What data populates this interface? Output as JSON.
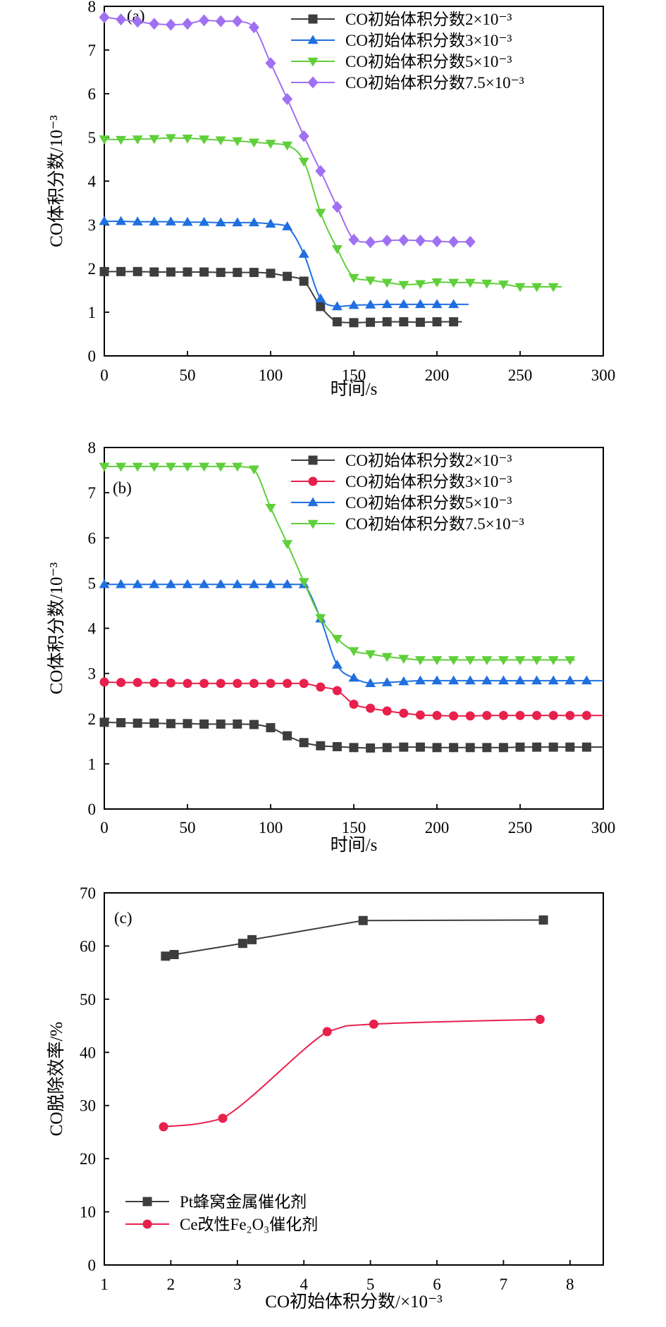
{
  "chart_data": [
    {
      "type": "line",
      "panel_label": "(a)",
      "xlabel": "时间/s",
      "ylabel": "CO体积分数/10⁻³",
      "xlim": [
        0,
        300
      ],
      "ylim": [
        0,
        8
      ],
      "xticks": [
        "0",
        "50",
        "100",
        "150",
        "200",
        "250",
        "300"
      ],
      "yticks": [
        "0",
        "1",
        "2",
        "3",
        "4",
        "5",
        "6",
        "7",
        "8"
      ],
      "legend_position": "top-right",
      "series": [
        {
          "name": "CO初始体积分数2×10⁻³",
          "color": "#3d3d3d",
          "marker": "square",
          "x": [
            0,
            10,
            20,
            30,
            40,
            50,
            60,
            70,
            80,
            90,
            100,
            110,
            120,
            130,
            140,
            150,
            160,
            170,
            180,
            190,
            200,
            210
          ],
          "y": [
            1.93,
            1.93,
            1.93,
            1.92,
            1.92,
            1.92,
            1.92,
            1.91,
            1.91,
            1.91,
            1.89,
            1.82,
            1.71,
            1.13,
            0.78,
            0.76,
            0.77,
            0.78,
            0.78,
            0.77,
            0.78,
            0.78
          ],
          "x_end": 215
        },
        {
          "name": "CO初始体积分数3×10⁻³",
          "color": "#1f6fe0",
          "marker": "triangle-up",
          "x": [
            0,
            10,
            20,
            30,
            40,
            50,
            60,
            70,
            80,
            90,
            100,
            110,
            120,
            130,
            140,
            150,
            160,
            170,
            180,
            190,
            200,
            210
          ],
          "y": [
            3.08,
            3.08,
            3.07,
            3.07,
            3.07,
            3.06,
            3.06,
            3.05,
            3.05,
            3.05,
            3.02,
            2.96,
            2.33,
            1.31,
            1.13,
            1.16,
            1.17,
            1.18,
            1.18,
            1.18,
            1.18,
            1.18
          ],
          "x_end": 219
        },
        {
          "name": "CO初始体积分数5×10⁻³",
          "color": "#5fcf3a",
          "marker": "triangle-down",
          "x": [
            0,
            10,
            20,
            30,
            40,
            50,
            60,
            70,
            80,
            90,
            100,
            110,
            120,
            130,
            140,
            150,
            160,
            170,
            180,
            190,
            200,
            210,
            220,
            230,
            240,
            250,
            260,
            270
          ],
          "y": [
            4.96,
            4.95,
            4.96,
            4.97,
            4.99,
            4.98,
            4.96,
            4.94,
            4.92,
            4.89,
            4.86,
            4.82,
            4.45,
            3.28,
            2.45,
            1.79,
            1.73,
            1.68,
            1.63,
            1.65,
            1.69,
            1.68,
            1.68,
            1.66,
            1.64,
            1.58,
            1.58,
            1.58
          ],
          "x_end": 275
        },
        {
          "name": "CO初始体积分数7.5×10⁻³",
          "color": "#a070f2",
          "marker": "diamond",
          "x": [
            0,
            10,
            20,
            30,
            40,
            50,
            60,
            70,
            80,
            90,
            100,
            110,
            120,
            130,
            140,
            150,
            160,
            170,
            180,
            190,
            200,
            210,
            220
          ],
          "y": [
            7.75,
            7.7,
            7.65,
            7.6,
            7.58,
            7.6,
            7.68,
            7.66,
            7.66,
            7.52,
            6.7,
            5.88,
            5.03,
            4.23,
            3.41,
            2.66,
            2.6,
            2.64,
            2.65,
            2.64,
            2.62,
            2.61,
            2.61
          ],
          "x_end": 222
        }
      ]
    },
    {
      "type": "line",
      "panel_label": "(b)",
      "xlabel": "时间/s",
      "ylabel": "CO体积分数/10⁻³",
      "xlim": [
        0,
        300
      ],
      "ylim": [
        0,
        8
      ],
      "xticks": [
        "0",
        "50",
        "100",
        "150",
        "200",
        "250",
        "300"
      ],
      "yticks": [
        "0",
        "1",
        "2",
        "3",
        "4",
        "5",
        "6",
        "7",
        "8"
      ],
      "legend_position": "top-right",
      "series": [
        {
          "name": "CO初始体积分数2×10⁻³",
          "color": "#3d3d3d",
          "marker": "square",
          "x": [
            0,
            10,
            20,
            30,
            40,
            50,
            60,
            70,
            80,
            90,
            100,
            110,
            120,
            130,
            140,
            150,
            160,
            170,
            180,
            190,
            200,
            210,
            220,
            230,
            240,
            250,
            260,
            270,
            280,
            290
          ],
          "y": [
            1.92,
            1.91,
            1.9,
            1.9,
            1.89,
            1.89,
            1.88,
            1.88,
            1.88,
            1.87,
            1.8,
            1.62,
            1.47,
            1.4,
            1.38,
            1.36,
            1.35,
            1.36,
            1.37,
            1.37,
            1.36,
            1.36,
            1.36,
            1.36,
            1.36,
            1.37,
            1.37,
            1.37,
            1.37,
            1.37
          ],
          "x_end": 300
        },
        {
          "name": "CO初始体积分数3×10⁻³",
          "color": "#e8204c",
          "marker": "circle",
          "x": [
            0,
            10,
            20,
            30,
            40,
            50,
            60,
            70,
            80,
            90,
            100,
            110,
            120,
            130,
            140,
            150,
            160,
            170,
            180,
            190,
            200,
            210,
            220,
            230,
            240,
            250,
            260,
            270,
            280,
            290
          ],
          "y": [
            2.81,
            2.8,
            2.8,
            2.79,
            2.79,
            2.78,
            2.78,
            2.78,
            2.78,
            2.78,
            2.78,
            2.78,
            2.78,
            2.7,
            2.62,
            2.32,
            2.23,
            2.17,
            2.12,
            2.08,
            2.07,
            2.06,
            2.06,
            2.07,
            2.07,
            2.07,
            2.07,
            2.07,
            2.07,
            2.07
          ],
          "x_end": 300
        },
        {
          "name": "CO初始体积分数5×10⁻³",
          "color": "#1f6fe0",
          "marker": "triangle-up",
          "x": [
            0,
            10,
            20,
            30,
            40,
            50,
            60,
            70,
            80,
            90,
            100,
            110,
            120,
            130,
            140,
            150,
            160,
            170,
            180,
            190,
            200,
            210,
            220,
            230,
            240,
            250,
            260,
            270,
            280,
            290
          ],
          "y": [
            4.97,
            4.97,
            4.97,
            4.97,
            4.97,
            4.97,
            4.97,
            4.97,
            4.97,
            4.97,
            4.97,
            4.97,
            4.97,
            4.21,
            3.19,
            2.9,
            2.78,
            2.8,
            2.82,
            2.84,
            2.84,
            2.84,
            2.84,
            2.84,
            2.84,
            2.84,
            2.84,
            2.84,
            2.84,
            2.84
          ],
          "x_end": 300
        },
        {
          "name": "CO初始体积分数7.5×10⁻³",
          "color": "#5fcf3a",
          "marker": "triangle-down",
          "x": [
            0,
            10,
            20,
            30,
            40,
            50,
            60,
            70,
            80,
            90,
            100,
            110,
            120,
            130,
            140,
            150,
            160,
            170,
            180,
            190,
            200,
            210,
            220,
            230,
            240,
            250,
            260,
            270,
            280
          ],
          "y": [
            7.58,
            7.58,
            7.58,
            7.58,
            7.58,
            7.58,
            7.58,
            7.58,
            7.58,
            7.52,
            6.67,
            5.87,
            5.03,
            4.23,
            3.77,
            3.5,
            3.43,
            3.37,
            3.33,
            3.3,
            3.3,
            3.3,
            3.3,
            3.3,
            3.3,
            3.3,
            3.3,
            3.3,
            3.3
          ],
          "x_end": 283
        }
      ]
    },
    {
      "type": "line",
      "panel_label": "(c)",
      "xlabel": "CO初始体积分数/×10⁻³",
      "ylabel": "CO脱除效率/%",
      "xlim": [
        1,
        8.5
      ],
      "ylim": [
        0,
        70
      ],
      "xticks": [
        "1",
        "2",
        "3",
        "4",
        "5",
        "6",
        "7",
        "8"
      ],
      "yticks": [
        "0",
        "10",
        "20",
        "30",
        "40",
        "50",
        "60",
        "70"
      ],
      "legend_position": "bottom-left",
      "series": [
        {
          "name": "Pt蜂窝金属催化剂",
          "color": "#3d3d3d",
          "marker": "square",
          "x": [
            1.92,
            2.05,
            3.08,
            3.22,
            4.89,
            7.6
          ],
          "y": [
            58.1,
            58.4,
            60.5,
            61.2,
            64.8,
            64.9
          ],
          "curve": "straight"
        },
        {
          "name": "Ce改性Fe₂O₃催化剂",
          "color": "#e8204c",
          "marker": "circle",
          "x": [
            1.89,
            2.78,
            4.35,
            5.05,
            7.55
          ],
          "y": [
            26.0,
            27.6,
            43.9,
            45.3,
            46.2
          ],
          "curve": "smooth"
        }
      ]
    }
  ]
}
